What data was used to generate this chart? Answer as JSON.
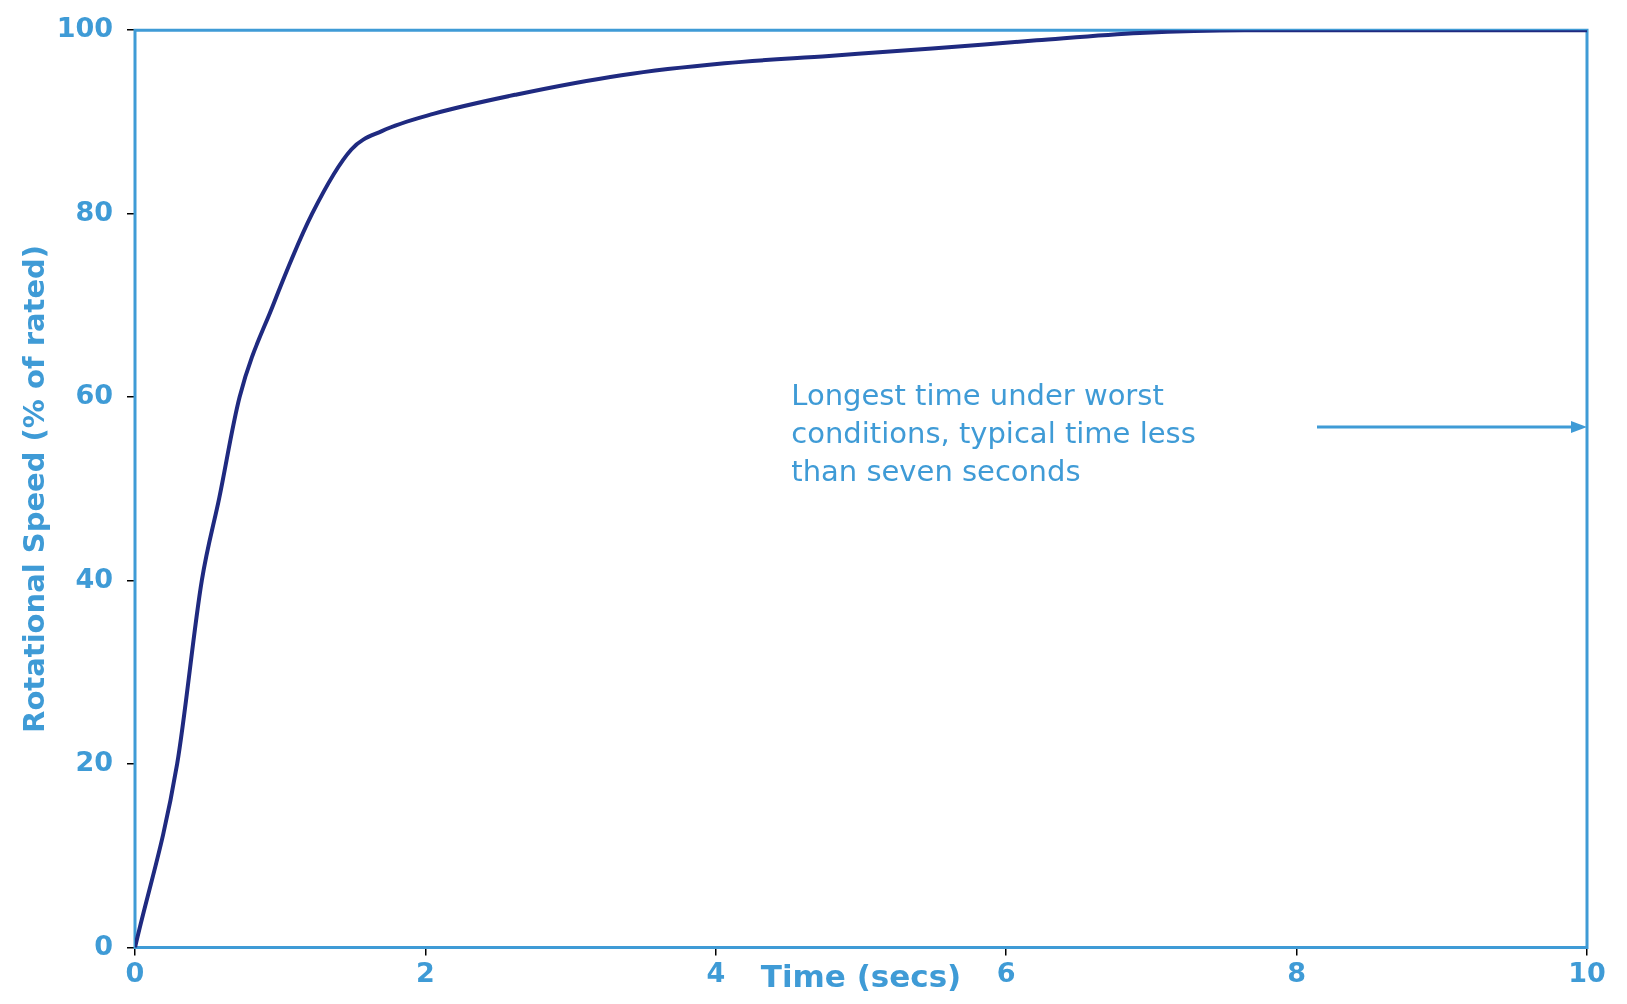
{
  "chart_data": {
    "type": "line",
    "xlabel": "Time (secs)",
    "ylabel": "Rotational Speed (% of rated)",
    "x": [
      0,
      0.29,
      0.46,
      0.58,
      0.72,
      0.95,
      1.22,
      1.49,
      1.7,
      2.06,
      2.63,
      3.35,
      4.06,
      4.78,
      5.49,
      6.21,
      6.92,
      7.64,
      8.5,
      10
    ],
    "series": [
      {
        "color": "#1f2a80",
        "values": [
          0,
          20,
          40,
          49,
          60,
          70,
          80,
          87,
          89,
          90.9,
          93,
          95.1,
          96.4,
          97.2,
          98,
          98.9,
          99.7,
          100,
          100,
          100
        ]
      }
    ],
    "xlim": [
      0,
      10
    ],
    "ylim": [
      0,
      100
    ],
    "xticks": [
      0,
      2,
      4,
      6,
      8,
      10
    ],
    "yticks": [
      0,
      20,
      40,
      60,
      80,
      100
    ],
    "grid": false,
    "legend": false,
    "marker": "none",
    "line_style": "solid",
    "annotations": [
      "Longest time under worst conditions, typical time less than seven seconds"
    ]
  }
}
